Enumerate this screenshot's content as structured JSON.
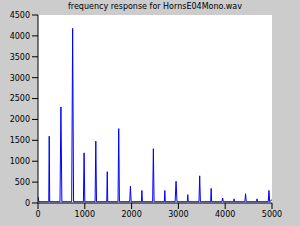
{
  "chart_data": {
    "type": "line",
    "title": "frequency response for HornsE04Mono.wav",
    "x": [
      0,
      20,
      230,
      240,
      250,
      470,
      490,
      510,
      720,
      740,
      760,
      970,
      985,
      1000,
      1220,
      1235,
      1250,
      1470,
      1480,
      1490,
      1710,
      1725,
      1740,
      1960,
      1975,
      1990,
      2210,
      2220,
      2230,
      2450,
      2465,
      2480,
      2700,
      2710,
      2720,
      2930,
      2950,
      2970,
      3190,
      3200,
      3210,
      3440,
      3455,
      3470,
      3690,
      3700,
      3710,
      3930,
      3945,
      3960,
      4180,
      4190,
      4200,
      4420,
      4435,
      4450,
      4670,
      4680,
      4690,
      4920,
      4935,
      4950,
      5000
    ],
    "values": [
      150,
      30,
      30,
      1600,
      30,
      30,
      2300,
      30,
      30,
      4180,
      30,
      30,
      1200,
      30,
      30,
      1480,
      30,
      30,
      750,
      30,
      30,
      1780,
      30,
      30,
      400,
      30,
      30,
      300,
      30,
      30,
      1300,
      30,
      30,
      300,
      30,
      30,
      520,
      30,
      30,
      200,
      30,
      30,
      650,
      30,
      30,
      350,
      30,
      30,
      120,
      30,
      30,
      100,
      30,
      30,
      220,
      30,
      30,
      100,
      30,
      30,
      300,
      30,
      80
    ],
    "color": "#0000ff",
    "xlim": [
      0,
      5000
    ],
    "xticks": [
      0,
      1000,
      2000,
      3000,
      4000,
      5000
    ],
    "ylim": [
      0,
      4500
    ],
    "yticks": [
      0,
      500,
      1000,
      1500,
      2000,
      2500,
      3000,
      3500,
      4000,
      4500
    ],
    "grid": false
  }
}
